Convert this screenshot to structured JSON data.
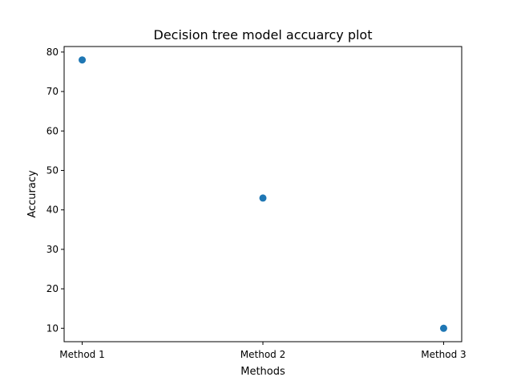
{
  "chart_data": {
    "type": "scatter",
    "title": "Decision tree model accuarcy plot",
    "xlabel": "Methods",
    "ylabel": "Accuracy",
    "categories": [
      "Method 1",
      "Method 2",
      "Method 3"
    ],
    "series": [
      {
        "values": [
          78,
          43,
          10
        ]
      }
    ],
    "ylim": [
      6.6,
      81.4
    ],
    "yticks": [
      10,
      20,
      30,
      40,
      50,
      60,
      70,
      80
    ],
    "grid": false,
    "marker_color": "#1f77b4"
  }
}
